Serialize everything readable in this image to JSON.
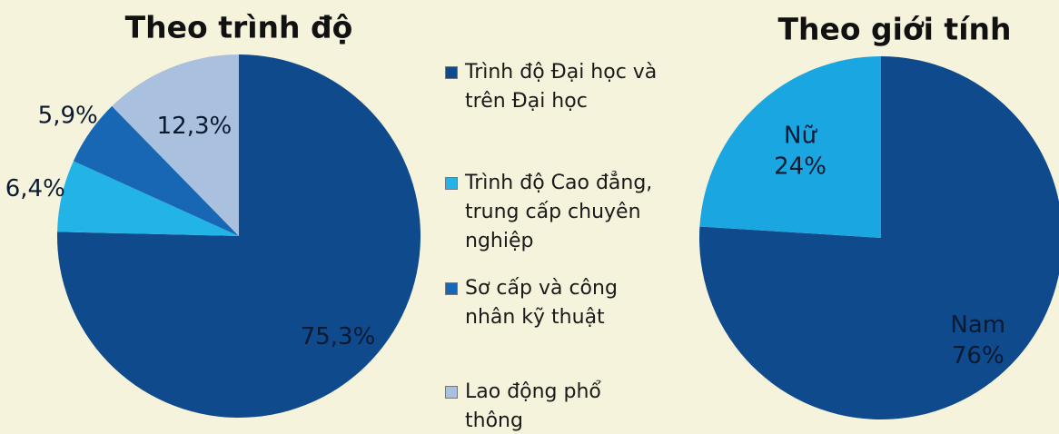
{
  "chart_data": [
    {
      "type": "pie",
      "title": "Theo trình độ",
      "categories": [
        "Trình độ Đại học và trên Đại học",
        "Trình độ Cao đẳng, trung cấp chuyên nghiệp",
        "Sơ cấp và công nhân kỹ thuật",
        "Lao động phổ thông"
      ],
      "values": [
        75.3,
        6.4,
        5.9,
        12.3
      ],
      "value_labels": [
        "75,3%",
        "6,4%",
        "5,9%",
        "12,3%"
      ],
      "colors": [
        "#0f4a8c",
        "#22b4e6",
        "#1767b4",
        "#a9c0de"
      ],
      "legend": "right"
    },
    {
      "type": "pie",
      "title": "Theo giới tính",
      "categories": [
        "Nam",
        "Nữ"
      ],
      "values": [
        76,
        24
      ],
      "value_labels": [
        "76%",
        "24%"
      ],
      "colors": [
        "#0f4a8c",
        "#1aa6e0"
      ]
    }
  ]
}
